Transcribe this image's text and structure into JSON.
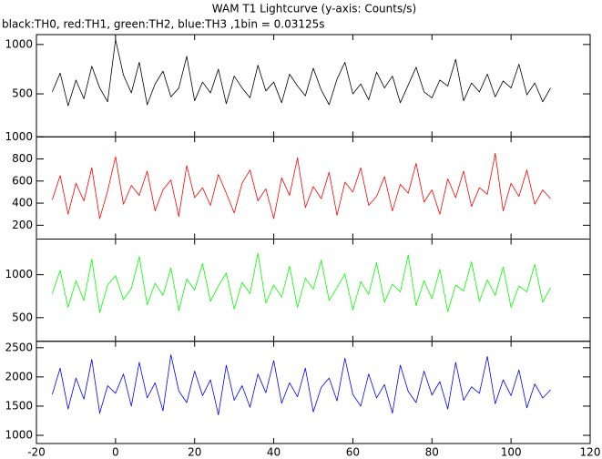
{
  "chart_data": {
    "type": "line",
    "title": "WAM T1 Lightcurve (y-axis: Counts/s)",
    "subtitle": "black:TH0, red:TH1, green:TH2, blue:TH3 ,1bin = 0.03125s",
    "xlim": [
      -20,
      120
    ],
    "xticks": [
      -20,
      0,
      20,
      40,
      60,
      80,
      100,
      120
    ],
    "x": [
      -16,
      -14,
      -12,
      -10,
      -8,
      -6,
      -4,
      -2,
      0,
      2,
      4,
      6,
      8,
      10,
      12,
      14,
      16,
      18,
      20,
      22,
      24,
      26,
      28,
      30,
      32,
      34,
      36,
      38,
      40,
      42,
      44,
      46,
      48,
      50,
      52,
      54,
      56,
      58,
      60,
      62,
      64,
      66,
      68,
      70,
      72,
      74,
      76,
      78,
      80,
      82,
      84,
      86,
      88,
      90,
      92,
      94,
      96,
      98,
      100,
      102,
      104,
      106,
      108,
      110
    ],
    "panels": [
      {
        "ylim": [
          65,
          1100
        ],
        "yticks": [
          500,
          1000
        ],
        "series": [
          {
            "color": "#000000",
            "values": [
              520,
              710,
              380,
              640,
              450,
              780,
              560,
              420,
              1050,
              690,
              510,
              820,
              390,
              600,
              730,
              470,
              560,
              880,
              430,
              620,
              510,
              750,
              400,
              680,
              560,
              460,
              790,
              530,
              620,
              410,
              700,
              580,
              480,
              760,
              540,
              390,
              650,
              820,
              500,
              600,
              440,
              720,
              560,
              680,
              410,
              590,
              770,
              520,
              460,
              640,
              580,
              850,
              430,
              610,
              520,
              700,
              470,
              630,
              560,
              800,
              490,
              610,
              420,
              560
            ]
          }
        ]
      },
      {
        "ylim": [
          75,
          1000
        ],
        "yticks": [
          200,
          400,
          600,
          800,
          1000
        ],
        "series": [
          {
            "color": "#ff0000",
            "values": [
              430,
              650,
              300,
              580,
              420,
              720,
              260,
              510,
              820,
              390,
              560,
              470,
              690,
              330,
              520,
              610,
              280,
              740,
              450,
              540,
              380,
              660,
              490,
              310,
              580,
              700,
              420,
              530,
              260,
              630,
              470,
              810,
              360,
              550,
              440,
              680,
              290,
              590,
              500,
              720,
              380,
              460,
              640,
              330,
              570,
              490,
              760,
              410,
              520,
              300,
              620,
              450,
              690,
              370,
              540,
              480,
              850,
              330,
              580,
              460,
              700,
              390,
              520,
              440
            ]
          }
        ]
      },
      {
        "ylim": [
          225,
          1415
        ],
        "yticks": [
          500,
          1000
        ],
        "series": [
          {
            "color": "#00ff00",
            "values": [
              780,
              1050,
              620,
              930,
              700,
              1180,
              560,
              880,
              990,
              710,
              840,
              1210,
              650,
              900,
              760,
              1080,
              580,
              950,
              820,
              1130,
              690,
              870,
              1020,
              600,
              910,
              780,
              1250,
              670,
              880,
              740,
              1100,
              620,
              960,
              830,
              1170,
              700,
              850,
              1010,
              590,
              920,
              770,
              1140,
              680,
              890,
              800,
              1230,
              640,
              930,
              720,
              1060,
              570,
              880,
              810,
              1150,
              690,
              940,
              760,
              1090,
              620,
              870,
              800,
              1120,
              680,
              850
            ]
          }
        ]
      },
      {
        "ylim": [
          860,
          2610
        ],
        "yticks": [
          1000,
          1500,
          2000,
          2500
        ],
        "series": [
          {
            "color": "#0000ff",
            "values": [
              1700,
              2150,
              1450,
              1980,
              1620,
              2300,
              1380,
              1850,
              1720,
              2050,
              1500,
              2250,
              1640,
              1900,
              1420,
              2380,
              1760,
              1560,
              2100,
              1680,
              1950,
              1350,
              2200,
              1600,
              1850,
              1480,
              2050,
              1730,
              2280,
              1550,
              1900,
              1660,
              2150,
              1400,
              1820,
              1980,
              1590,
              2320,
              1700,
              1500,
              2050,
              1640,
              1870,
              1380,
              2200,
              1750,
              1560,
              2100,
              1690,
              1920,
              1450,
              2250,
              1600,
              1830,
              1720,
              2350,
              1540,
              1950,
              1680,
              2120,
              1470,
              1880,
              1640,
              1780
            ]
          }
        ]
      }
    ]
  }
}
